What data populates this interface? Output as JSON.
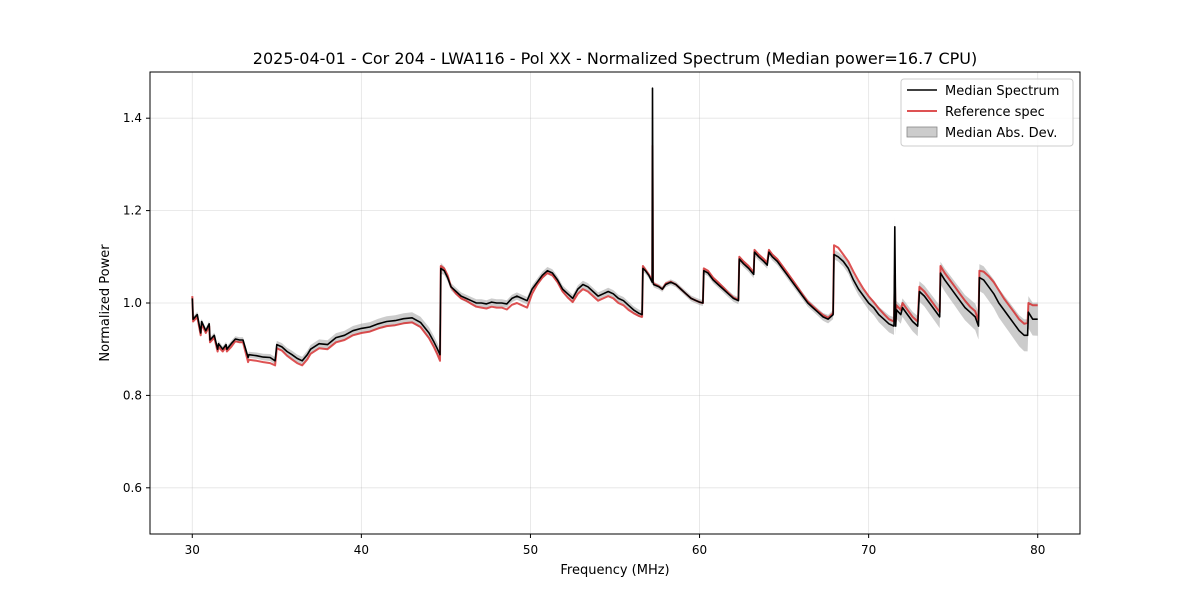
{
  "chart_data": {
    "type": "line",
    "title": "2025-04-01 - Cor 204 - LWA116 - Pol XX - Normalized Spectrum (Median power=16.7 CPU)",
    "xlabel": "Frequency (MHz)",
    "ylabel": "Normalized Power",
    "xlim": [
      27.5,
      82.5
    ],
    "ylim": [
      0.5,
      1.5
    ],
    "xticks": [
      30,
      40,
      50,
      60,
      70,
      80
    ],
    "xtick_labels": [
      "30",
      "40",
      "50",
      "60",
      "70",
      "80"
    ],
    "yticks": [
      0.6,
      0.8,
      1.0,
      1.2,
      1.4
    ],
    "ytick_labels": [
      "0.6",
      "0.8",
      "1.0",
      "1.2",
      "1.4"
    ],
    "grid": true,
    "legend": {
      "placement": "top-right",
      "entries": [
        "Median Spectrum",
        "Reference spec",
        "Median Abs. Dev."
      ]
    },
    "colors": {
      "median": "#000000",
      "reference": "#d62728",
      "mad": "#999999"
    },
    "series": [
      {
        "name": "Median Spectrum",
        "x": [
          30.0,
          30.05,
          30.3,
          30.5,
          30.55,
          30.8,
          31.0,
          31.05,
          31.3,
          31.5,
          31.55,
          31.8,
          32.0,
          32.05,
          32.3,
          32.5,
          32.55,
          32.8,
          33.0,
          33.3,
          33.35,
          33.8,
          34.2,
          34.6,
          34.9,
          35.0,
          35.3,
          35.6,
          35.9,
          36.2,
          36.5,
          36.8,
          37.0,
          37.5,
          38.0,
          38.5,
          39.0,
          39.5,
          40.0,
          40.5,
          41.0,
          41.5,
          42.0,
          42.5,
          43.0,
          43.5,
          44.0,
          44.3,
          44.5,
          44.65,
          44.7,
          44.9,
          45.1,
          45.3,
          45.6,
          45.9,
          46.2,
          46.5,
          46.8,
          47.1,
          47.4,
          47.7,
          48.0,
          48.3,
          48.6,
          48.9,
          49.2,
          49.5,
          49.8,
          50.1,
          50.4,
          50.7,
          51.0,
          51.3,
          51.6,
          51.9,
          52.2,
          52.5,
          52.8,
          53.1,
          53.4,
          53.7,
          54.0,
          54.3,
          54.6,
          54.9,
          55.2,
          55.5,
          55.8,
          56.1,
          56.4,
          56.6,
          56.65,
          56.8,
          57.0,
          57.2,
          57.22,
          57.25,
          57.28,
          57.4,
          57.6,
          57.8,
          58.0,
          58.3,
          58.6,
          58.9,
          59.2,
          59.5,
          59.8,
          60.0,
          60.2,
          60.25,
          60.5,
          60.8,
          61.1,
          61.4,
          61.7,
          62.0,
          62.3,
          62.35,
          62.6,
          62.9,
          63.2,
          63.25,
          63.5,
          63.8,
          64.0,
          64.1,
          64.3,
          64.6,
          64.9,
          65.2,
          65.5,
          65.8,
          66.1,
          66.4,
          66.7,
          67.0,
          67.3,
          67.6,
          67.9,
          67.95,
          68.2,
          68.5,
          68.8,
          69.1,
          69.4,
          69.7,
          70.0,
          70.3,
          70.6,
          70.9,
          71.2,
          71.5,
          71.55,
          71.6,
          71.65,
          71.9,
          72.0,
          72.3,
          72.6,
          72.9,
          73.0,
          73.3,
          73.6,
          73.9,
          74.2,
          74.25,
          74.5,
          74.8,
          75.1,
          75.4,
          75.7,
          76.0,
          76.3,
          76.5,
          76.55,
          76.8,
          77.1,
          77.4,
          77.7,
          78.0,
          78.3,
          78.6,
          78.9,
          79.2,
          79.4,
          79.45,
          79.7,
          80.0
        ],
        "values": [
          1.01,
          0.965,
          0.975,
          0.935,
          0.96,
          0.94,
          0.955,
          0.92,
          0.93,
          0.9,
          0.912,
          0.9,
          0.91,
          0.9,
          0.912,
          0.92,
          0.922,
          0.92,
          0.92,
          0.882,
          0.888,
          0.886,
          0.883,
          0.882,
          0.875,
          0.91,
          0.905,
          0.895,
          0.888,
          0.88,
          0.875,
          0.888,
          0.9,
          0.912,
          0.91,
          0.925,
          0.93,
          0.94,
          0.945,
          0.948,
          0.955,
          0.96,
          0.962,
          0.966,
          0.968,
          0.958,
          0.935,
          0.915,
          0.9,
          0.888,
          1.075,
          1.07,
          1.055,
          1.035,
          1.025,
          1.015,
          1.01,
          1.005,
          1.0,
          1.0,
          0.998,
          1.002,
          1.0,
          1.0,
          0.998,
          1.01,
          1.015,
          1.01,
          1.005,
          1.03,
          1.045,
          1.06,
          1.07,
          1.065,
          1.05,
          1.03,
          1.02,
          1.01,
          1.03,
          1.04,
          1.035,
          1.025,
          1.015,
          1.02,
          1.025,
          1.02,
          1.01,
          1.005,
          0.995,
          0.985,
          0.978,
          0.975,
          1.075,
          1.07,
          1.06,
          1.045,
          1.465,
          1.045,
          1.04,
          1.038,
          1.035,
          1.03,
          1.04,
          1.045,
          1.04,
          1.03,
          1.02,
          1.01,
          1.005,
          1.002,
          1.0,
          1.07,
          1.065,
          1.05,
          1.04,
          1.03,
          1.02,
          1.01,
          1.005,
          1.095,
          1.085,
          1.075,
          1.062,
          1.11,
          1.1,
          1.09,
          1.082,
          1.11,
          1.1,
          1.09,
          1.075,
          1.06,
          1.045,
          1.03,
          1.015,
          1.0,
          0.99,
          0.98,
          0.97,
          0.965,
          0.975,
          1.105,
          1.1,
          1.09,
          1.075,
          1.05,
          1.03,
          1.015,
          1.0,
          0.99,
          0.975,
          0.965,
          0.955,
          0.95,
          1.165,
          0.95,
          0.985,
          0.975,
          0.99,
          0.975,
          0.96,
          0.95,
          1.025,
          1.015,
          1.0,
          0.985,
          0.97,
          1.065,
          1.05,
          1.035,
          1.02,
          1.005,
          0.99,
          0.98,
          0.97,
          0.95,
          1.055,
          1.05,
          1.035,
          1.02,
          1.0,
          0.985,
          0.97,
          0.955,
          0.94,
          0.93,
          0.93,
          0.98,
          0.965,
          0.965
        ]
      },
      {
        "name": "Reference spec",
        "x": [
          30.0,
          30.05,
          30.3,
          30.5,
          30.55,
          30.8,
          31.0,
          31.05,
          31.3,
          31.5,
          31.55,
          31.8,
          32.0,
          32.05,
          32.3,
          32.5,
          32.55,
          32.8,
          33.0,
          33.3,
          33.35,
          33.8,
          34.2,
          34.6,
          34.9,
          35.0,
          35.3,
          35.6,
          35.9,
          36.2,
          36.5,
          36.8,
          37.0,
          37.5,
          38.0,
          38.5,
          39.0,
          39.5,
          40.0,
          40.5,
          41.0,
          41.5,
          42.0,
          42.5,
          43.0,
          43.5,
          44.0,
          44.3,
          44.5,
          44.65,
          44.7,
          44.9,
          45.1,
          45.3,
          45.6,
          45.9,
          46.2,
          46.5,
          46.8,
          47.1,
          47.4,
          47.7,
          48.0,
          48.3,
          48.6,
          48.9,
          49.2,
          49.5,
          49.8,
          50.1,
          50.4,
          50.7,
          51.0,
          51.3,
          51.6,
          51.9,
          52.2,
          52.5,
          52.8,
          53.1,
          53.4,
          53.7,
          54.0,
          54.3,
          54.6,
          54.9,
          55.2,
          55.5,
          55.8,
          56.1,
          56.4,
          56.6,
          56.65,
          56.8,
          57.0,
          57.2,
          57.22,
          57.25,
          57.28,
          57.4,
          57.6,
          57.8,
          58.0,
          58.3,
          58.6,
          58.9,
          59.2,
          59.5,
          59.8,
          60.0,
          60.2,
          60.25,
          60.5,
          60.8,
          61.1,
          61.4,
          61.7,
          62.0,
          62.3,
          62.35,
          62.6,
          62.9,
          63.2,
          63.25,
          63.5,
          63.8,
          64.0,
          64.1,
          64.3,
          64.6,
          64.9,
          65.2,
          65.5,
          65.8,
          66.1,
          66.4,
          66.7,
          67.0,
          67.3,
          67.6,
          67.9,
          67.95,
          68.2,
          68.5,
          68.8,
          69.1,
          69.4,
          69.7,
          70.0,
          70.3,
          70.6,
          70.9,
          71.2,
          71.5,
          71.55,
          71.6,
          71.65,
          71.9,
          72.0,
          72.3,
          72.6,
          72.9,
          73.0,
          73.3,
          73.6,
          73.9,
          74.2,
          74.25,
          74.5,
          74.8,
          75.1,
          75.4,
          75.7,
          76.0,
          76.3,
          76.5,
          76.55,
          76.8,
          77.1,
          77.4,
          77.7,
          78.0,
          78.3,
          78.6,
          78.9,
          79.2,
          79.4,
          79.45,
          79.7,
          80.0
        ],
        "values": [
          1.015,
          0.96,
          0.97,
          0.93,
          0.955,
          0.935,
          0.95,
          0.915,
          0.925,
          0.895,
          0.905,
          0.895,
          0.905,
          0.895,
          0.905,
          0.915,
          0.917,
          0.915,
          0.915,
          0.872,
          0.877,
          0.875,
          0.872,
          0.87,
          0.865,
          0.902,
          0.897,
          0.886,
          0.878,
          0.87,
          0.865,
          0.878,
          0.89,
          0.902,
          0.9,
          0.915,
          0.92,
          0.93,
          0.935,
          0.938,
          0.945,
          0.95,
          0.952,
          0.956,
          0.958,
          0.948,
          0.924,
          0.904,
          0.888,
          0.875,
          1.08,
          1.075,
          1.06,
          1.035,
          1.02,
          1.01,
          1.005,
          0.998,
          0.992,
          0.99,
          0.988,
          0.992,
          0.99,
          0.99,
          0.986,
          0.996,
          1.0,
          0.995,
          0.99,
          1.02,
          1.04,
          1.055,
          1.065,
          1.06,
          1.045,
          1.025,
          1.012,
          1.002,
          1.02,
          1.03,
          1.025,
          1.015,
          1.005,
          1.01,
          1.015,
          1.01,
          1.0,
          0.995,
          0.985,
          0.978,
          0.972,
          0.97,
          1.08,
          1.072,
          1.062,
          1.048,
          1.34,
          1.048,
          1.042,
          1.04,
          1.036,
          1.03,
          1.042,
          1.046,
          1.04,
          1.03,
          1.02,
          1.01,
          1.005,
          1.002,
          1.0,
          1.075,
          1.07,
          1.055,
          1.045,
          1.034,
          1.022,
          1.012,
          1.007,
          1.1,
          1.09,
          1.08,
          1.066,
          1.115,
          1.105,
          1.095,
          1.087,
          1.115,
          1.105,
          1.095,
          1.08,
          1.065,
          1.05,
          1.034,
          1.018,
          1.003,
          0.993,
          0.983,
          0.974,
          0.968,
          0.978,
          1.125,
          1.12,
          1.105,
          1.09,
          1.068,
          1.048,
          1.03,
          1.015,
          1.002,
          0.988,
          0.976,
          0.965,
          0.96,
          1.06,
          0.96,
          0.995,
          0.985,
          1.0,
          0.985,
          0.97,
          0.96,
          1.035,
          1.025,
          1.01,
          0.995,
          0.98,
          1.08,
          1.065,
          1.05,
          1.035,
          1.02,
          1.005,
          0.992,
          0.982,
          0.962,
          1.07,
          1.068,
          1.058,
          1.045,
          1.028,
          1.01,
          0.995,
          0.98,
          0.965,
          0.955,
          0.957,
          1.0,
          0.995,
          0.995
        ]
      }
    ],
    "mad_band": {
      "name": "Median Abs. Dev.",
      "note": "band = median +/- deviation",
      "x": [
        30.0,
        33.0,
        35.0,
        37.0,
        39.0,
        41.0,
        43.0,
        44.6,
        45.0,
        47.0,
        49.0,
        51.0,
        53.0,
        55.0,
        56.6,
        57.0,
        59.0,
        61.0,
        63.0,
        65.0,
        67.0,
        68.0,
        69.0,
        70.0,
        71.0,
        72.0,
        73.0,
        74.0,
        75.0,
        76.0,
        77.0,
        78.0,
        79.0,
        80.0
      ],
      "deviation": [
        0.006,
        0.006,
        0.008,
        0.009,
        0.01,
        0.011,
        0.012,
        0.013,
        0.008,
        0.008,
        0.008,
        0.008,
        0.008,
        0.008,
        0.008,
        0.006,
        0.006,
        0.007,
        0.008,
        0.008,
        0.008,
        0.01,
        0.012,
        0.015,
        0.018,
        0.02,
        0.022,
        0.024,
        0.026,
        0.028,
        0.03,
        0.032,
        0.034,
        0.036
      ]
    }
  }
}
